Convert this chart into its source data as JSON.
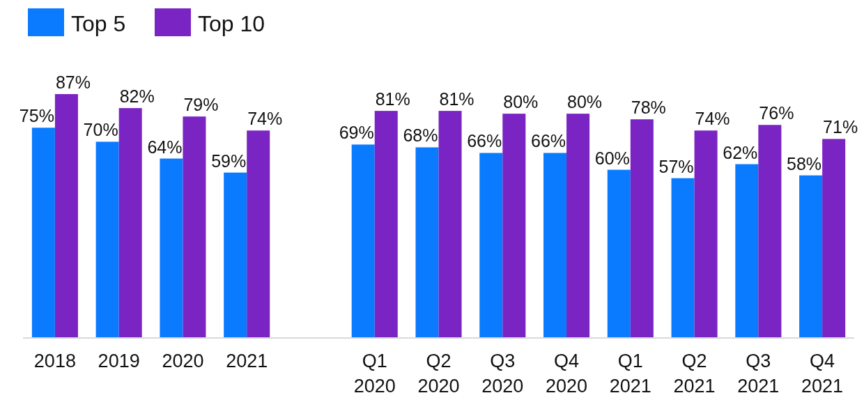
{
  "chart_data": {
    "type": "bar",
    "categories": [
      "2018",
      "2019",
      "2020",
      "2021",
      null,
      "Q1\n2020",
      "Q2\n2020",
      "Q3\n2020",
      "Q4\n2020",
      "Q1\n2021",
      "Q2\n2021",
      "Q3\n2021",
      "Q4\n2021"
    ],
    "series": [
      {
        "name": "Top 5",
        "color": "#0a7bff",
        "values": [
          75,
          70,
          64,
          59,
          null,
          69,
          68,
          66,
          66,
          60,
          57,
          62,
          58
        ],
        "value_labels": [
          "75%",
          "70%",
          "64%",
          "59%",
          null,
          "69%",
          "68%",
          "66%",
          "66%",
          "60%",
          "57%",
          "62%",
          "58%"
        ]
      },
      {
        "name": "Top 10",
        "color": "#7b24c4",
        "values": [
          87,
          82,
          79,
          74,
          null,
          81,
          81,
          80,
          80,
          78,
          74,
          76,
          71
        ],
        "value_labels": [
          "87%",
          "82%",
          "79%",
          "74%",
          null,
          "81%",
          "81%",
          "80%",
          "80%",
          "78%",
          "74%",
          "76%",
          "71%"
        ]
      }
    ],
    "tick_labels": "x",
    "legend": "top left"
  }
}
